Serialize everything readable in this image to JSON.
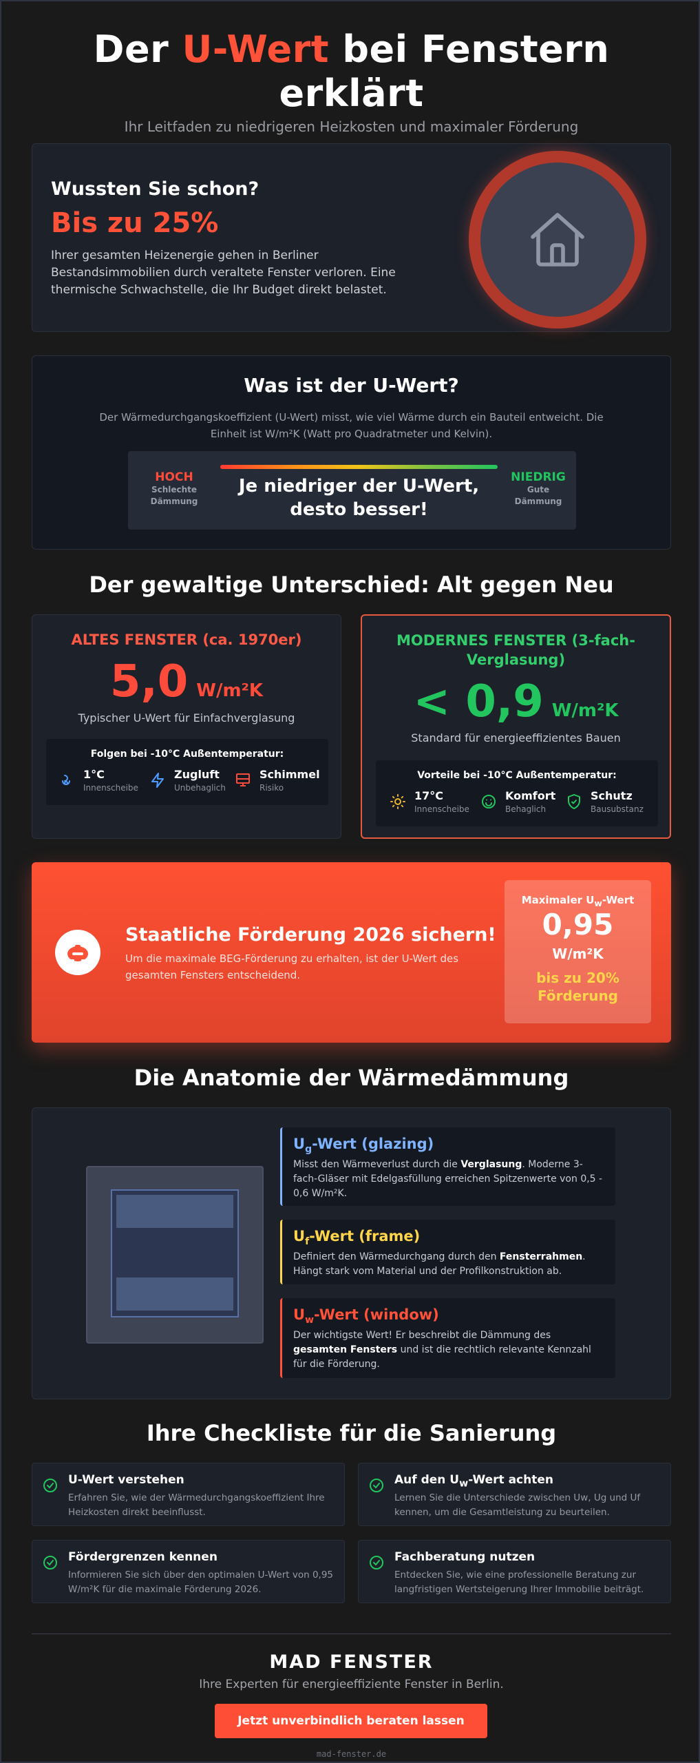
{
  "header": {
    "title_pre": "Der ",
    "title_accent": "U-Wert",
    "title_post": " bei Fenstern erklärt",
    "subtitle": "Ihr Leitfaden zu niedrigeren Heizkosten und maximaler Förderung"
  },
  "hero": {
    "kicker": "Wussten Sie schon?",
    "stat": "Bis zu 25%",
    "text": "Ihrer gesamten Heizenergie gehen in Berliner Bestandsimmobilien durch veraltete Fenster verloren. Eine thermische Schwachstelle, die Ihr Budget direkt belastet.",
    "icon": "house-icon"
  },
  "what": {
    "title": "Was ist der U-Wert?",
    "text": "Der Wärmedurchgangskoeffizient (U-Wert) misst, wie viel Wärme durch ein Bauteil entweicht. Die Einheit ist W/m²K (Watt pro Quadratmeter und Kelvin).",
    "high_label": "HOCH",
    "high_sub": "Schlechte Dämmung",
    "low_label": "NIEDRIG",
    "low_sub": "Gute Dämmung",
    "message": "Je niedriger der U-Wert, desto besser!"
  },
  "compare": {
    "title": "Der gewaltige Unterschied: Alt gegen Neu",
    "old": {
      "title": "ALTES FENSTER (ca. 1970er)",
      "value": "5,0",
      "unit": "W/m²K",
      "desc": "Typischer U-Wert für Einfachverglasung",
      "box_title": "Folgen bei -10°C Außentemperatur:",
      "items": [
        {
          "a": "1°C",
          "b": "Innenscheibe",
          "icon": "cold-thermometer-icon"
        },
        {
          "a": "Zugluft",
          "b": "Unbehaglich",
          "icon": "lightning-icon"
        },
        {
          "a": "Schimmel",
          "b": "Risiko",
          "icon": "mold-warning-icon"
        }
      ]
    },
    "new": {
      "title": "MODERNES FENSTER (3-fach-Verglasung)",
      "value": "< 0,9",
      "unit": "W/m²K",
      "desc": "Standard für energieeffizientes Bauen",
      "box_title": "Vorteile bei -10°C Außentemperatur:",
      "items": [
        {
          "a": "17°C",
          "b": "Innenscheibe",
          "icon": "sun-icon"
        },
        {
          "a": "Komfort",
          "b": "Behaglich",
          "icon": "smile-icon"
        },
        {
          "a": "Schutz",
          "b": "Bausubstanz",
          "icon": "shield-check-icon"
        }
      ]
    }
  },
  "funding": {
    "title": "Staatliche Förderung 2026 sichern!",
    "text": "Um die maximale BEG-Förderung zu erhalten, ist der U-Wert des gesamten Fensters entscheidend.",
    "box_label_pre": "Maximaler U",
    "box_label_sub": "w",
    "box_label_post": "-Wert",
    "box_value": "0,95",
    "box_unit": "W/m²K",
    "box_bonus": "bis zu 20% Förderung",
    "icon": "piggy-bank-icon"
  },
  "anatomy": {
    "title": "Die Anatomie der Wärmedämmung",
    "items": [
      {
        "u": "U",
        "sub": "g",
        "rest": "-Wert (glazing)",
        "color": "#7fb3ff",
        "d1": "Misst den Wärmeverlust durch die ",
        "b1": "Verglasung",
        "d2": ". Moderne 3-fach-Gläser mit Edelgasfüllung erreichen Spitzenwerte von 0,5 - 0,6 W/m²K.",
        "b2": "",
        "d3": ""
      },
      {
        "u": "U",
        "sub": "f",
        "rest": "-Wert (frame)",
        "color": "#ffd54a",
        "d1": "Definiert den Wärmedurchgang durch den ",
        "b1": "Fensterrahmen",
        "d2": ". Hängt stark vom Material und der Profilkonstruktion ab.",
        "b2": "",
        "d3": ""
      },
      {
        "u": "U",
        "sub": "w",
        "rest": "-Wert (window)",
        "color": "#ff5238",
        "d1": "Der wichtigste Wert! Er beschreibt die Dämmung des ",
        "b1": "gesamten Fensters",
        "d2": " und ist die rechtlich relevante Kennzahl für die Förderung.",
        "b2": "",
        "d3": ""
      }
    ]
  },
  "checklist": {
    "title": "Ihre Checkliste für die Sanierung",
    "items": [
      {
        "t": "U-Wert verstehen",
        "d": "Erfahren Sie, wie der Wärmedurchgangskoeffizient Ihre Heizkosten direkt beeinflusst."
      },
      {
        "t": "Auf den U_w-Wert achten",
        "t_pre": "Auf den U",
        "t_sub": "w",
        "t_post": "-Wert achten",
        "d": "Lernen Sie die Unterschiede zwischen Uw, Ug und Uf kennen, um die Gesamtleistung zu beurteilen."
      },
      {
        "t": "Fördergrenzen kennen",
        "d": "Informieren Sie sich über den optimalen U-Wert von 0,95 W/m²K für die maximale Förderung 2026."
      },
      {
        "t": "Fachberatung nutzen",
        "d": "Entdecken Sie, wie eine professionelle Beratung zur langfristigen Wertsteigerung Ihrer Immobilie beiträgt."
      }
    ]
  },
  "footer": {
    "brand": "MAD FENSTER",
    "tagline": "Ihre Experten für energieeffiziente Fenster in Berlin.",
    "cta": "Jetzt unverbindlich beraten lassen",
    "site": "mad-fenster.de"
  },
  "colors": {
    "accent": "#ff5238",
    "green": "#22c55e",
    "yellow": "#ffd54a",
    "blue": "#7fb3ff",
    "background": "#1a1a1a"
  }
}
